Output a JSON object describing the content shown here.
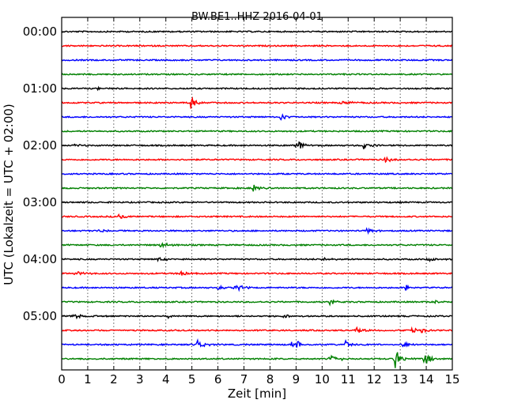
{
  "chart_data": {
    "type": "line",
    "title": "BW.BE1..HHZ 2016-04-01",
    "xlabel": "Zeit  [min]",
    "ylabel": "UTC (Lokalzeit = UTC + 02:00)",
    "xlim": [
      0,
      15
    ],
    "xticks": [
      "0",
      "1",
      "2",
      "3",
      "4",
      "5",
      "6",
      "7",
      "8",
      "9",
      "10",
      "11",
      "12",
      "13",
      "14",
      "15"
    ],
    "yticks": [
      "00:00",
      "01:00",
      "02:00",
      "03:00",
      "04:00",
      "05:00"
    ],
    "grid": "vertical dotted",
    "trace_colors": [
      "#000000",
      "#ff0000",
      "#0000ff",
      "#008000"
    ],
    "traces": [
      {
        "start": "00:00",
        "events": []
      },
      {
        "start": "00:15",
        "events": []
      },
      {
        "start": "00:30",
        "events": []
      },
      {
        "start": "00:45",
        "events": []
      },
      {
        "start": "01:00",
        "events": [
          {
            "t": 1.4,
            "amp": 0.2
          }
        ]
      },
      {
        "start": "01:15",
        "events": [
          {
            "t": 4.95,
            "amp": 0.9
          },
          {
            "t": 10.75,
            "amp": 0.45
          }
        ]
      },
      {
        "start": "01:30",
        "events": [
          {
            "t": 8.4,
            "amp": 0.5
          }
        ]
      },
      {
        "start": "01:45",
        "events": []
      },
      {
        "start": "02:00",
        "events": [
          {
            "t": 0.5,
            "amp": 0.25
          },
          {
            "t": 9.0,
            "amp": 0.8
          },
          {
            "t": 11.6,
            "amp": 0.55
          }
        ]
      },
      {
        "start": "02:15",
        "events": [
          {
            "t": 12.4,
            "amp": 0.5
          }
        ]
      },
      {
        "start": "02:30",
        "events": []
      },
      {
        "start": "02:45",
        "events": [
          {
            "t": 7.3,
            "amp": 0.55
          }
        ]
      },
      {
        "start": "03:00",
        "events": []
      },
      {
        "start": "03:15",
        "events": [
          {
            "t": 2.2,
            "amp": 0.5
          }
        ]
      },
      {
        "start": "03:30",
        "events": [
          {
            "t": 1.4,
            "amp": 0.3
          },
          {
            "t": 11.7,
            "amp": 0.45
          }
        ]
      },
      {
        "start": "03:45",
        "events": [
          {
            "t": 3.8,
            "amp": 0.4
          }
        ]
      },
      {
        "start": "04:00",
        "events": [
          {
            "t": 3.7,
            "amp": 0.35
          },
          {
            "t": 10.0,
            "amp": 0.3
          },
          {
            "t": 14.0,
            "amp": 0.45
          }
        ]
      },
      {
        "start": "04:15",
        "events": [
          {
            "t": 0.5,
            "amp": 0.45
          },
          {
            "t": 4.55,
            "amp": 0.45
          }
        ]
      },
      {
        "start": "04:30",
        "events": [
          {
            "t": 6.0,
            "amp": 0.5
          },
          {
            "t": 6.65,
            "amp": 0.7
          },
          {
            "t": 13.2,
            "amp": 0.45
          }
        ]
      },
      {
        "start": "04:45",
        "events": [
          {
            "t": 10.3,
            "amp": 0.4
          },
          {
            "t": 14.2,
            "amp": 0.45
          }
        ]
      },
      {
        "start": "05:00",
        "events": [
          {
            "t": 0.4,
            "amp": 0.45
          },
          {
            "t": 4.1,
            "amp": 0.3
          },
          {
            "t": 8.5,
            "amp": 0.3
          }
        ]
      },
      {
        "start": "05:15",
        "events": [
          {
            "t": 11.3,
            "amp": 0.45
          },
          {
            "t": 13.45,
            "amp": 0.45
          },
          {
            "t": 13.8,
            "amp": 0.35
          }
        ]
      },
      {
        "start": "05:30",
        "events": [
          {
            "t": 5.2,
            "amp": 0.75
          },
          {
            "t": 8.8,
            "amp": 0.55
          },
          {
            "t": 9.0,
            "amp": 0.45
          },
          {
            "t": 10.9,
            "amp": 0.5
          },
          {
            "t": 13.1,
            "amp": 0.45
          }
        ]
      },
      {
        "start": "05:45",
        "events": [
          {
            "t": 10.3,
            "amp": 0.85
          },
          {
            "t": 12.8,
            "amp": 1.2
          },
          {
            "t": 13.9,
            "amp": 1.1
          }
        ]
      }
    ]
  }
}
